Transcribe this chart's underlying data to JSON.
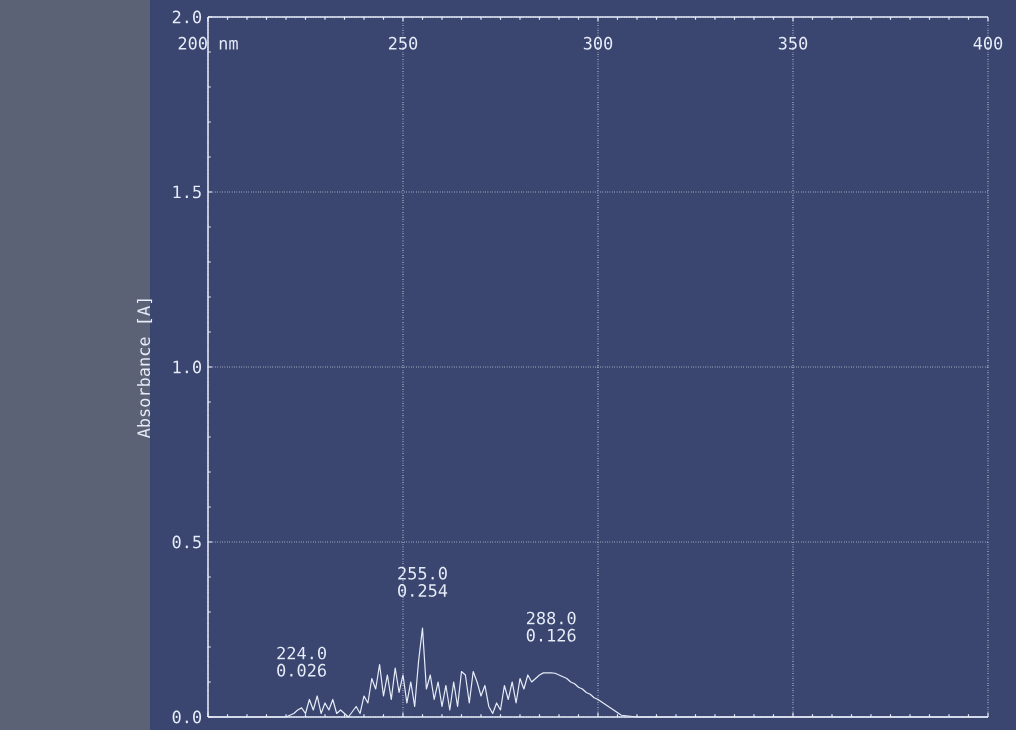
{
  "chart_data": {
    "type": "line",
    "ylabel": "Absorbance [A]",
    "x": [
      200,
      205,
      210,
      215,
      220,
      222,
      223,
      224,
      225,
      226,
      227,
      228,
      229,
      230,
      231,
      232,
      233,
      234,
      236,
      238,
      239,
      240,
      241,
      242,
      243,
      244,
      245,
      246,
      247,
      248,
      249,
      250,
      251,
      252,
      253,
      254,
      255,
      256,
      257,
      258,
      259,
      260,
      261,
      262,
      263,
      264,
      265,
      266,
      267,
      268,
      269,
      270,
      271,
      272,
      273,
      274,
      275,
      276,
      277,
      278,
      279,
      280,
      281,
      282,
      283,
      284,
      285,
      286,
      287,
      288,
      289,
      290,
      291,
      292,
      293,
      294,
      295,
      296,
      297,
      298,
      299,
      300,
      302,
      304,
      306,
      310,
      320,
      340,
      360,
      380,
      400
    ],
    "values": [
      0,
      0,
      0,
      0,
      0,
      0.01,
      0.02,
      0.026,
      0.01,
      0.05,
      0.02,
      0.06,
      0.01,
      0.04,
      0.02,
      0.05,
      0.01,
      0.02,
      0,
      0.03,
      0.01,
      0.06,
      0.04,
      0.11,
      0.08,
      0.15,
      0.06,
      0.12,
      0.05,
      0.14,
      0.07,
      0.12,
      0.04,
      0.1,
      0.03,
      0.16,
      0.254,
      0.08,
      0.12,
      0.05,
      0.1,
      0.03,
      0.09,
      0.02,
      0.1,
      0.03,
      0.13,
      0.12,
      0.04,
      0.13,
      0.1,
      0.06,
      0.09,
      0.03,
      0.01,
      0.04,
      0.02,
      0.09,
      0.05,
      0.1,
      0.04,
      0.11,
      0.08,
      0.12,
      0.1,
      0.11,
      0.12,
      0.126,
      0.126,
      0.126,
      0.125,
      0.12,
      0.115,
      0.11,
      0.1,
      0.095,
      0.085,
      0.08,
      0.07,
      0.065,
      0.055,
      0.05,
      0.035,
      0.02,
      0.005,
      0,
      0,
      0,
      0,
      0,
      0
    ],
    "color": "#e6ecf8",
    "xlim": [
      200,
      400
    ],
    "ylim": [
      0,
      2
    ],
    "xticks": [
      {
        "value": 200,
        "label": "200 nm"
      },
      250,
      300,
      350,
      400
    ],
    "yticks": [
      {
        "value": 0,
        "label": "0.0"
      },
      0.5,
      {
        "value": 1,
        "label": "1.0"
      },
      1.5,
      {
        "value": 2,
        "label": "2.0"
      }
    ],
    "grid": true,
    "line_style": "solid",
    "marker": "none",
    "annotations": [
      "224.0",
      {
        "text": "0.026",
        "x": 224,
        "y": 0.026
      },
      "255.0",
      {
        "text": "0.254",
        "x": 255,
        "y": 0.254
      },
      "288.0",
      {
        "text": "0.126",
        "x": 288,
        "y": 0.126
      }
    ]
  }
}
